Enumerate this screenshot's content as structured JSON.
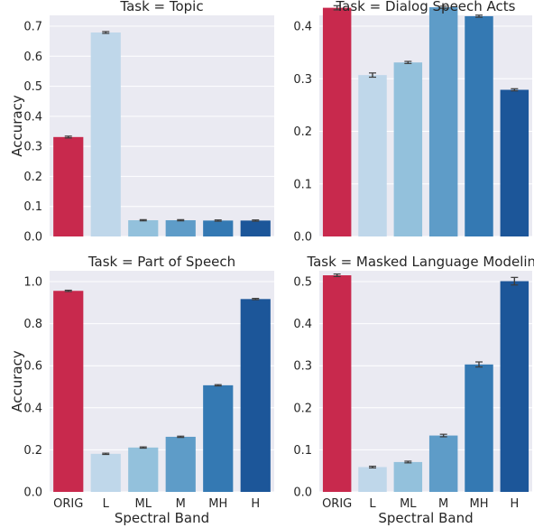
{
  "chart_data": [
    {
      "type": "bar",
      "title": "Task = Topic",
      "xlabel": "",
      "ylabel": "Accuracy",
      "categories": [
        "ORIG",
        "L",
        "ML",
        "M",
        "MH",
        "H"
      ],
      "values": [
        0.331,
        0.679,
        0.054,
        0.054,
        0.053,
        0.053
      ],
      "errors": [
        0.003,
        0.003,
        0.002,
        0.002,
        0.002,
        0.002
      ],
      "ylim": [
        0,
        0.7
      ],
      "yticks": [
        "0.0",
        "0.1",
        "0.2",
        "0.3",
        "0.4",
        "0.5",
        "0.6",
        "0.7"
      ],
      "show_xticklabels": false
    },
    {
      "type": "bar",
      "title": "Task = Dialog Speech Acts",
      "xlabel": "",
      "ylabel": "",
      "categories": [
        "ORIG",
        "L",
        "ML",
        "M",
        "MH",
        "H"
      ],
      "values": [
        0.435,
        0.307,
        0.331,
        0.436,
        0.419,
        0.279
      ],
      "errors": [
        0.004,
        0.004,
        0.002,
        0.002,
        0.002,
        0.002
      ],
      "ylim": [
        0,
        0.4
      ],
      "yticks": [
        "0.0",
        "0.1",
        "0.2",
        "0.3",
        "0.4"
      ],
      "show_xticklabels": false
    },
    {
      "type": "bar",
      "title": "Task = Part of Speech",
      "xlabel": "Spectral Band",
      "ylabel": "Accuracy",
      "categories": [
        "ORIG",
        "L",
        "ML",
        "M",
        "MH",
        "H"
      ],
      "values": [
        0.956,
        0.181,
        0.211,
        0.262,
        0.507,
        0.917
      ],
      "errors": [
        0.003,
        0.003,
        0.003,
        0.003,
        0.003,
        0.003
      ],
      "ylim": [
        0,
        1.0
      ],
      "yticks": [
        "0.0",
        "0.2",
        "0.4",
        "0.6",
        "0.8",
        "1.0"
      ],
      "show_xticklabels": true
    },
    {
      "type": "bar",
      "title": "Task = Masked Language Modeling",
      "xlabel": "Spectral Band",
      "ylabel": "",
      "categories": [
        "ORIG",
        "L",
        "ML",
        "M",
        "MH",
        "H"
      ],
      "values": [
        0.515,
        0.059,
        0.071,
        0.134,
        0.303,
        0.501
      ],
      "errors": [
        0.003,
        0.002,
        0.002,
        0.003,
        0.006,
        0.009
      ],
      "ylim": [
        0,
        0.5
      ],
      "yticks": [
        "0.0",
        "0.1",
        "0.2",
        "0.3",
        "0.4",
        "0.5"
      ],
      "show_xticklabels": true
    }
  ],
  "colors": {
    "background": "#eaeaf2",
    "grid": "#ffffff",
    "bars": [
      "#c8294d",
      "#bfd7ea",
      "#93c1dc",
      "#5e9cc8",
      "#3479b3",
      "#1c5699"
    ],
    "error_bar": "#3c3c3c",
    "text": "#262626"
  }
}
